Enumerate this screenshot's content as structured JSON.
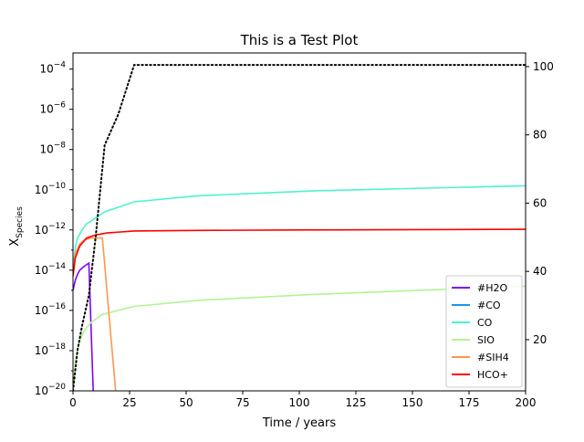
{
  "chart_data": {
    "type": "line",
    "title": "This is a Test Plot",
    "xlabel": "Time / years",
    "ylabel_main": "X",
    "ylabel_sub": "Species",
    "xlim": [
      0,
      200
    ],
    "x_ticks": [
      0,
      25,
      50,
      75,
      100,
      125,
      150,
      175,
      200
    ],
    "y_scale": "log",
    "ylim_exp": [
      -20,
      -3.2
    ],
    "y_tick_exps": [
      -20,
      -18,
      -16,
      -14,
      -12,
      -10,
      -8,
      -6,
      -4
    ],
    "y2lim": [
      5,
      104
    ],
    "y2_ticks": [
      20,
      40,
      60,
      80,
      100
    ],
    "grid": false,
    "legend_position": "lower-right",
    "series": [
      {
        "name": "#H2O",
        "color": "#8000ff",
        "axis": "left",
        "points": [
          [
            0,
            -15
          ],
          [
            1,
            -14.5
          ],
          [
            2,
            -14.2
          ],
          [
            3,
            -14
          ],
          [
            5,
            -13.8
          ],
          [
            7,
            -13.65
          ],
          [
            9,
            -20.2
          ]
        ]
      },
      {
        "name": "#CO",
        "color": "#1996f3",
        "axis": "left",
        "points": []
      },
      {
        "name": "CO",
        "color": "#4df3ce",
        "axis": "left",
        "points": [
          [
            0,
            -14
          ],
          [
            1,
            -12.9
          ],
          [
            2,
            -12.4
          ],
          [
            4,
            -12
          ],
          [
            6,
            -11.7
          ],
          [
            10,
            -11.4
          ],
          [
            14,
            -11.1
          ],
          [
            27,
            -10.6
          ],
          [
            55,
            -10.3
          ],
          [
            107,
            -10.05
          ],
          [
            200,
            -9.8
          ]
        ]
      },
      {
        "name": "SIO",
        "color": "#b2f396",
        "axis": "left",
        "points": [
          [
            0,
            -20
          ],
          [
            1,
            -18.5
          ],
          [
            3,
            -17.5
          ],
          [
            5,
            -17
          ],
          [
            8,
            -16.6
          ],
          [
            13,
            -16.2
          ],
          [
            20,
            -16
          ],
          [
            27,
            -15.8
          ],
          [
            55,
            -15.5
          ],
          [
            107,
            -15.2
          ],
          [
            200,
            -14.8
          ]
        ]
      },
      {
        "name": "#SIH4",
        "color": "#ff964f",
        "axis": "left",
        "points": [
          [
            0,
            -14.3
          ],
          [
            1,
            -13.2
          ],
          [
            3,
            -12.7
          ],
          [
            5,
            -12.5
          ],
          [
            8,
            -12.4
          ],
          [
            13,
            -12.4
          ],
          [
            19,
            -20.2
          ]
        ]
      },
      {
        "name": "HCO+",
        "color": "#ff0000",
        "axis": "left",
        "points": [
          [
            0,
            -14.3
          ],
          [
            1,
            -13.4
          ],
          [
            3,
            -12.8
          ],
          [
            6,
            -12.4
          ],
          [
            10,
            -12.25
          ],
          [
            15,
            -12.15
          ],
          [
            27,
            -12.05
          ],
          [
            55,
            -12.02
          ],
          [
            100,
            -12
          ],
          [
            200,
            -11.97
          ]
        ]
      },
      {
        "name": "",
        "color": "#000000",
        "axis": "right",
        "dashed": true,
        "in_legend": false,
        "points": [
          [
            0,
            5
          ],
          [
            2,
            17
          ],
          [
            4,
            24
          ],
          [
            7,
            33
          ],
          [
            10,
            50
          ],
          [
            14,
            77
          ],
          [
            20,
            86
          ],
          [
            27,
            100.5
          ],
          [
            200,
            100.5
          ]
        ]
      }
    ]
  }
}
